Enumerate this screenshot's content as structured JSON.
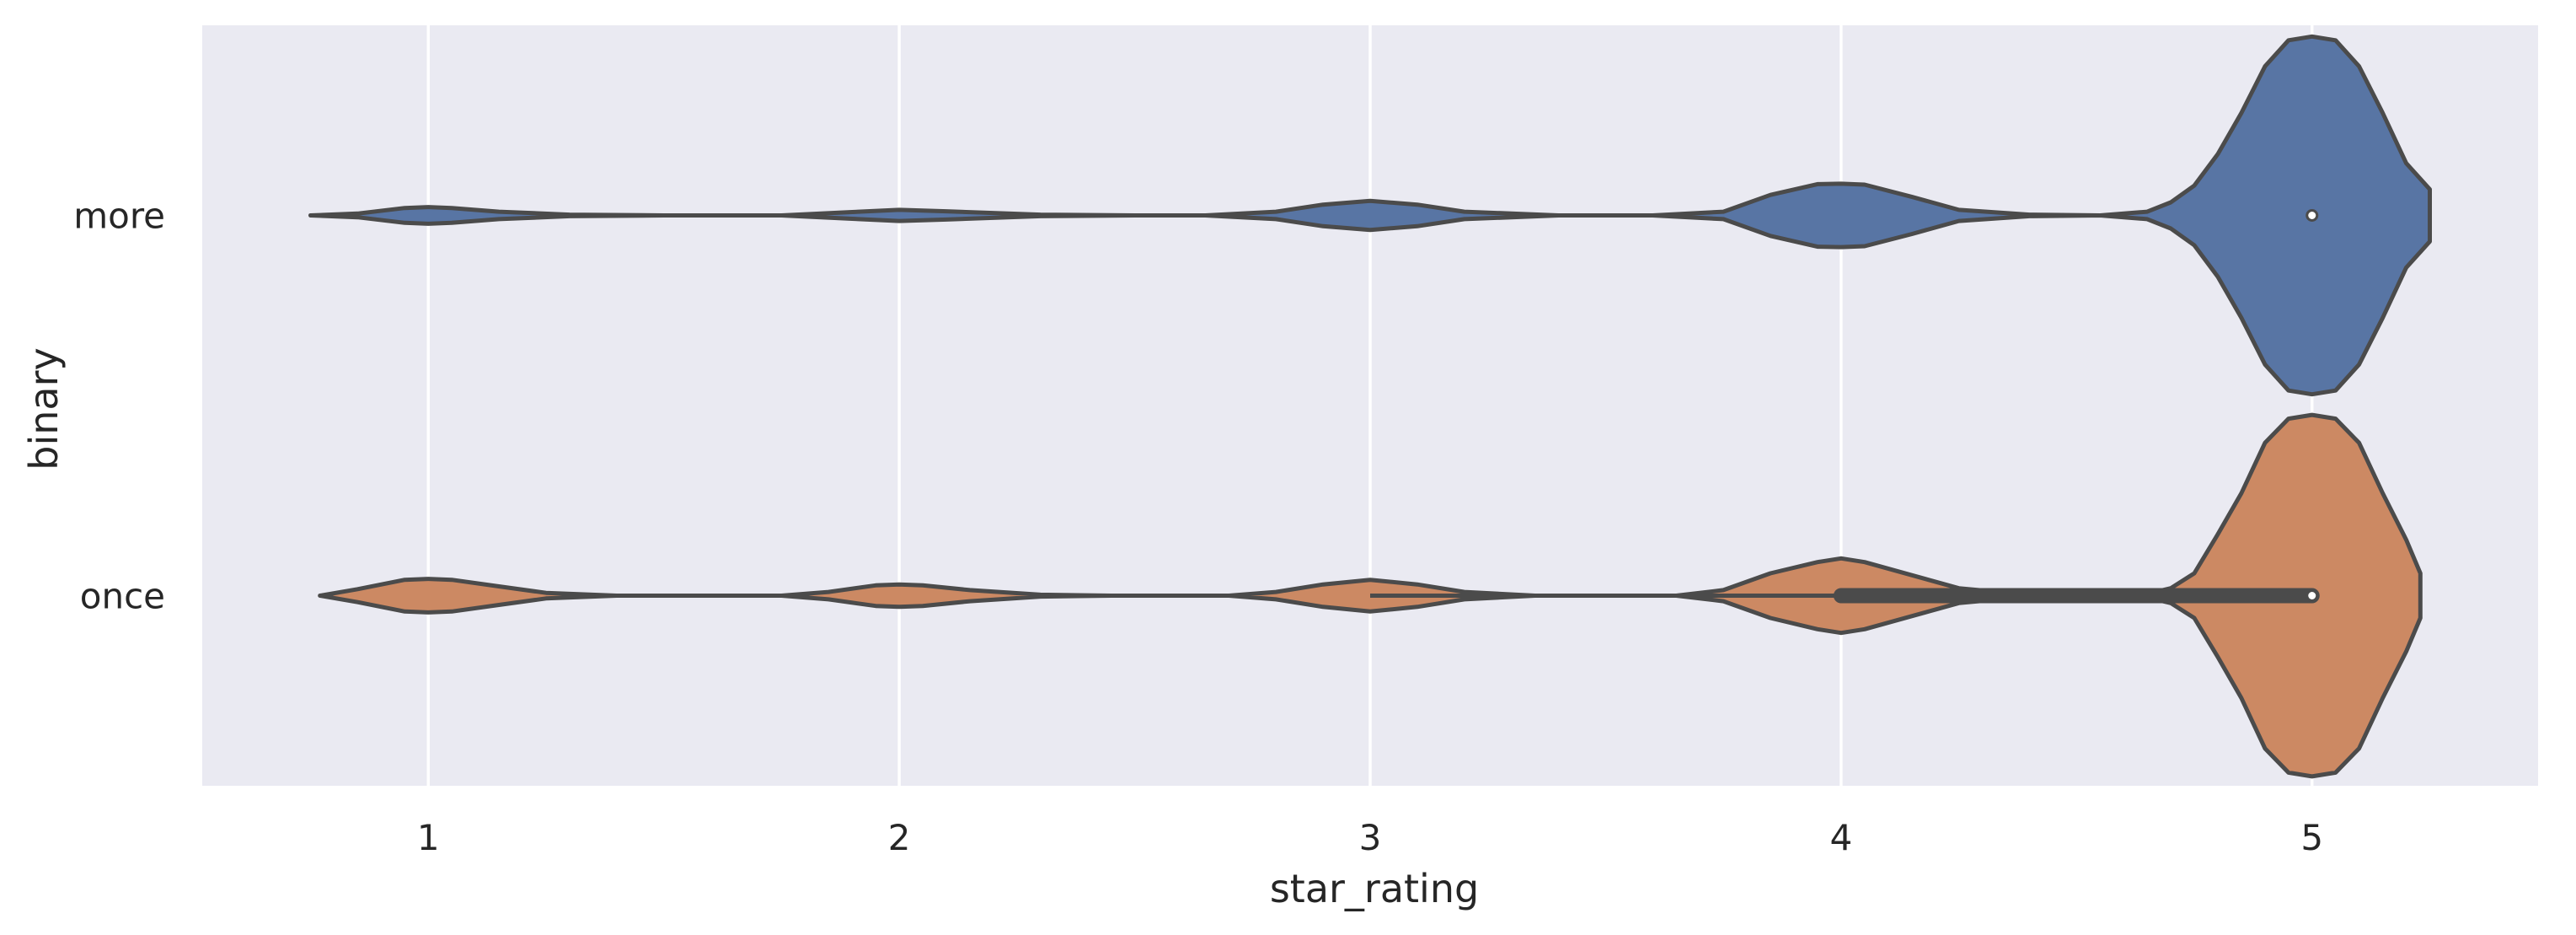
{
  "chart_data": {
    "type": "violin",
    "orientation": "horizontal",
    "xlabel": "star_rating",
    "ylabel": "binary",
    "xlim": [
      0.52,
      5.48
    ],
    "xticks": [
      1,
      2,
      3,
      4,
      5
    ],
    "categories": [
      "more",
      "once"
    ],
    "grid": true,
    "series": [
      {
        "name": "more",
        "color": "#5875a4",
        "density": [
          [
            0.75,
            0.0
          ],
          [
            0.85,
            0.01
          ],
          [
            0.95,
            0.04
          ],
          [
            1.0,
            0.045
          ],
          [
            1.05,
            0.04
          ],
          [
            1.15,
            0.02
          ],
          [
            1.3,
            0.004
          ],
          [
            1.5,
            0.0
          ],
          [
            1.75,
            0.0
          ],
          [
            1.9,
            0.018
          ],
          [
            2.0,
            0.03
          ],
          [
            2.1,
            0.022
          ],
          [
            2.3,
            0.004
          ],
          [
            2.5,
            0.0
          ],
          [
            2.65,
            0.0
          ],
          [
            2.8,
            0.02
          ],
          [
            2.9,
            0.058
          ],
          [
            3.0,
            0.078
          ],
          [
            3.1,
            0.058
          ],
          [
            3.2,
            0.02
          ],
          [
            3.4,
            0.0
          ],
          [
            3.6,
            0.0
          ],
          [
            3.75,
            0.02
          ],
          [
            3.85,
            0.11
          ],
          [
            3.95,
            0.168
          ],
          [
            4.0,
            0.17
          ],
          [
            4.05,
            0.165
          ],
          [
            4.15,
            0.1
          ],
          [
            4.25,
            0.03
          ],
          [
            4.4,
            0.004
          ],
          [
            4.55,
            0.0
          ],
          [
            4.65,
            0.02
          ],
          [
            4.7,
            0.07
          ],
          [
            4.75,
            0.16
          ],
          [
            4.8,
            0.33
          ],
          [
            4.85,
            0.55
          ],
          [
            4.9,
            0.8
          ],
          [
            4.95,
            0.94
          ],
          [
            5.0,
            0.96
          ],
          [
            5.05,
            0.94
          ],
          [
            5.1,
            0.8
          ],
          [
            5.15,
            0.55
          ],
          [
            5.2,
            0.28
          ],
          [
            5.25,
            0.14
          ]
        ],
        "median": 5
      },
      {
        "name": "once",
        "color": "#cc8963",
        "density": [
          [
            0.77,
            0.0
          ],
          [
            0.85,
            0.035
          ],
          [
            0.95,
            0.085
          ],
          [
            1.0,
            0.09
          ],
          [
            1.05,
            0.085
          ],
          [
            1.15,
            0.05
          ],
          [
            1.25,
            0.015
          ],
          [
            1.4,
            0.0
          ],
          [
            1.75,
            0.0
          ],
          [
            1.85,
            0.02
          ],
          [
            1.95,
            0.055
          ],
          [
            2.0,
            0.06
          ],
          [
            2.05,
            0.055
          ],
          [
            2.15,
            0.03
          ],
          [
            2.3,
            0.005
          ],
          [
            2.45,
            0.0
          ],
          [
            2.7,
            0.0
          ],
          [
            2.8,
            0.02
          ],
          [
            2.9,
            0.06
          ],
          [
            3.0,
            0.085
          ],
          [
            3.1,
            0.06
          ],
          [
            3.2,
            0.02
          ],
          [
            3.35,
            0.0
          ],
          [
            3.65,
            0.0
          ],
          [
            3.75,
            0.03
          ],
          [
            3.85,
            0.12
          ],
          [
            3.95,
            0.18
          ],
          [
            4.0,
            0.2
          ],
          [
            4.05,
            0.18
          ],
          [
            4.15,
            0.11
          ],
          [
            4.25,
            0.04
          ],
          [
            4.4,
            0.005
          ],
          [
            4.55,
            0.0
          ],
          [
            4.65,
            0.01
          ],
          [
            4.7,
            0.04
          ],
          [
            4.75,
            0.12
          ],
          [
            4.8,
            0.33
          ],
          [
            4.85,
            0.55
          ],
          [
            4.9,
            0.82
          ],
          [
            4.95,
            0.95
          ],
          [
            5.0,
            0.97
          ],
          [
            5.05,
            0.95
          ],
          [
            5.1,
            0.82
          ],
          [
            5.15,
            0.55
          ],
          [
            5.2,
            0.3
          ],
          [
            5.23,
            0.12
          ]
        ],
        "box": {
          "q1": 4,
          "q3": 5,
          "whisker_low": 3,
          "whisker_high": 5
        },
        "median": 5
      }
    ]
  }
}
